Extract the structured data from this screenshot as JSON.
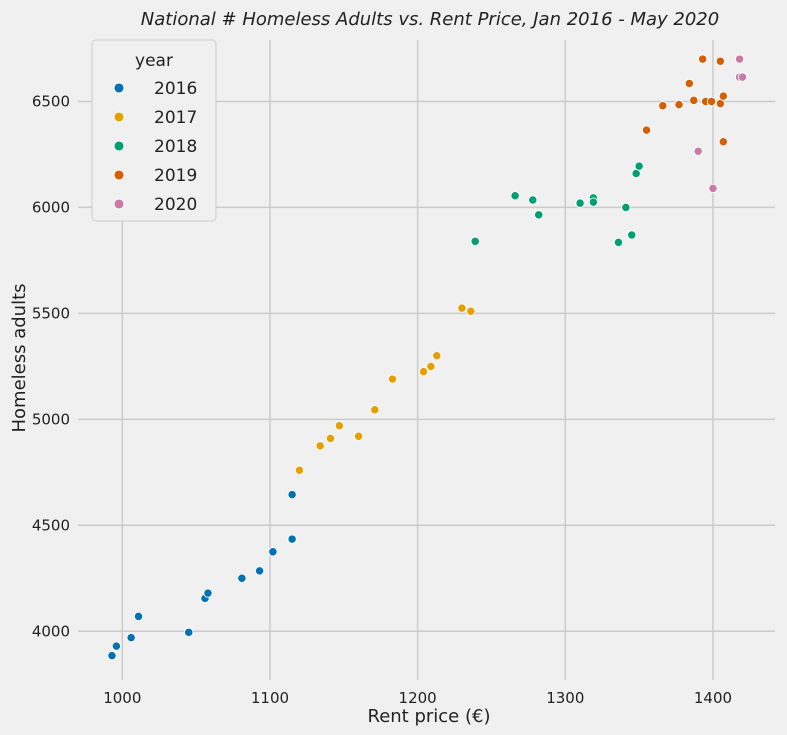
{
  "chart_data": {
    "type": "scatter",
    "title": "National # Homeless Adults vs. Rent Price, Jan 2016 - May 2020",
    "xlabel": "Rent price (€)",
    "ylabel": "Homeless adults",
    "xlim": [
      970,
      1442
    ],
    "ylim": [
      3770,
      6790
    ],
    "xticks": [
      1000,
      1100,
      1200,
      1300,
      1400
    ],
    "yticks": [
      4000,
      4500,
      5000,
      5500,
      6000,
      6500
    ],
    "grid": true,
    "legend": {
      "title": "year",
      "placement": "top-left"
    },
    "series": [
      {
        "name": "2016",
        "color": "#0072b2",
        "points": [
          {
            "x": 993,
            "y": 3885
          },
          {
            "x": 996,
            "y": 3930
          },
          {
            "x": 1006,
            "y": 3970
          },
          {
            "x": 1011,
            "y": 4070
          },
          {
            "x": 1045,
            "y": 3995
          },
          {
            "x": 1056,
            "y": 4155
          },
          {
            "x": 1058,
            "y": 4180
          },
          {
            "x": 1081,
            "y": 4250
          },
          {
            "x": 1093,
            "y": 4285
          },
          {
            "x": 1102,
            "y": 4375
          },
          {
            "x": 1115,
            "y": 4435
          },
          {
            "x": 1115,
            "y": 4645
          }
        ]
      },
      {
        "name": "2017",
        "color": "#e69f00",
        "points": [
          {
            "x": 1120,
            "y": 4760
          },
          {
            "x": 1134,
            "y": 4875
          },
          {
            "x": 1141,
            "y": 4910
          },
          {
            "x": 1147,
            "y": 4970
          },
          {
            "x": 1160,
            "y": 4920
          },
          {
            "x": 1171,
            "y": 5045
          },
          {
            "x": 1183,
            "y": 5190
          },
          {
            "x": 1204,
            "y": 5225
          },
          {
            "x": 1209,
            "y": 5250
          },
          {
            "x": 1213,
            "y": 5300
          },
          {
            "x": 1230,
            "y": 5525
          },
          {
            "x": 1236,
            "y": 5510
          }
        ]
      },
      {
        "name": "2018",
        "color": "#009e73",
        "points": [
          {
            "x": 1239,
            "y": 5840
          },
          {
            "x": 1266,
            "y": 6055
          },
          {
            "x": 1278,
            "y": 6035
          },
          {
            "x": 1282,
            "y": 5965
          },
          {
            "x": 1310,
            "y": 6020
          },
          {
            "x": 1319,
            "y": 6045
          },
          {
            "x": 1319,
            "y": 6025
          },
          {
            "x": 1336,
            "y": 5835
          },
          {
            "x": 1341,
            "y": 6000
          },
          {
            "x": 1345,
            "y": 5870
          },
          {
            "x": 1348,
            "y": 6160
          },
          {
            "x": 1350,
            "y": 6195
          }
        ]
      },
      {
        "name": "2019",
        "color": "#d55e00",
        "points": [
          {
            "x": 1355,
            "y": 6365
          },
          {
            "x": 1366,
            "y": 6480
          },
          {
            "x": 1377,
            "y": 6485
          },
          {
            "x": 1384,
            "y": 6585
          },
          {
            "x": 1387,
            "y": 6505
          },
          {
            "x": 1393,
            "y": 6700
          },
          {
            "x": 1395,
            "y": 6500
          },
          {
            "x": 1399,
            "y": 6500
          },
          {
            "x": 1405,
            "y": 6690
          },
          {
            "x": 1405,
            "y": 6490
          },
          {
            "x": 1407,
            "y": 6525
          },
          {
            "x": 1407,
            "y": 6310
          }
        ]
      },
      {
        "name": "2020",
        "color": "#cc79a7",
        "points": [
          {
            "x": 1390,
            "y": 6265
          },
          {
            "x": 1400,
            "y": 6090
          },
          {
            "x": 1418,
            "y": 6700
          },
          {
            "x": 1418,
            "y": 6615
          },
          {
            "x": 1420,
            "y": 6615
          }
        ]
      }
    ]
  }
}
